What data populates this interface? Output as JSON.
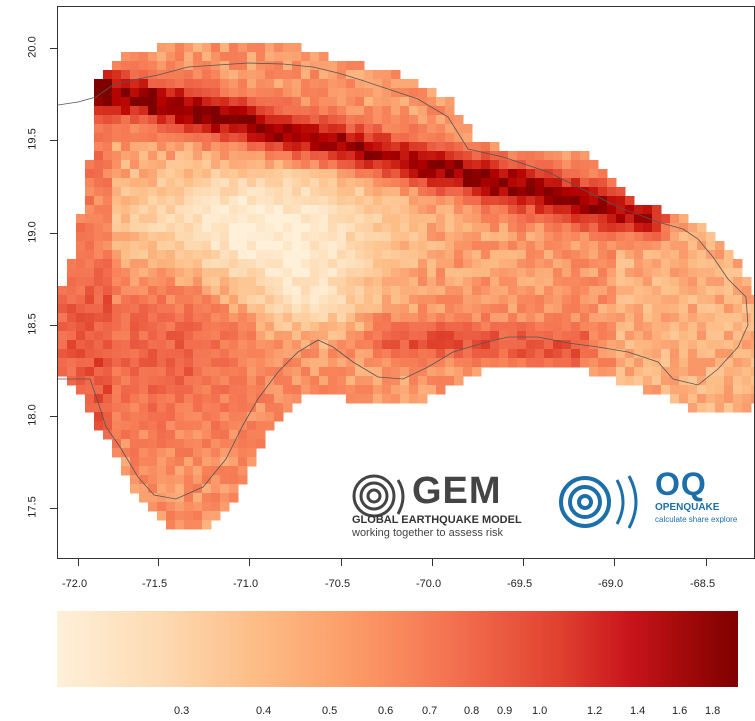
{
  "map": {
    "y_ticks": [
      "20.0",
      "19.5",
      "19.0",
      "18.5",
      "18.0",
      "17.5"
    ],
    "x_ticks": [
      "-72.0",
      "-71.5",
      "-71.0",
      "-70.5",
      "-70.0",
      "-69.5",
      "-69.0",
      "-68.5"
    ],
    "colors": {
      "low": "#fef0d9",
      "mid": "#f8845a",
      "high": "#7f0000",
      "coast": "#555555"
    }
  },
  "legend": {
    "labels": [
      "0.3",
      "0.4",
      "0.5",
      "0.6",
      "0.7",
      "0.8",
      "0.9",
      "1.0",
      "1.2",
      "1.4",
      "1.6",
      "1.8"
    ]
  },
  "logos": {
    "gem": {
      "name": "GEM",
      "line1": "GLOBAL EARTHQUAKE MODEL",
      "line2": "working together to assess risk"
    },
    "openquake": {
      "name": "OQ",
      "line1": "OPENQUAKE",
      "line2": "calculate share explore"
    }
  }
}
